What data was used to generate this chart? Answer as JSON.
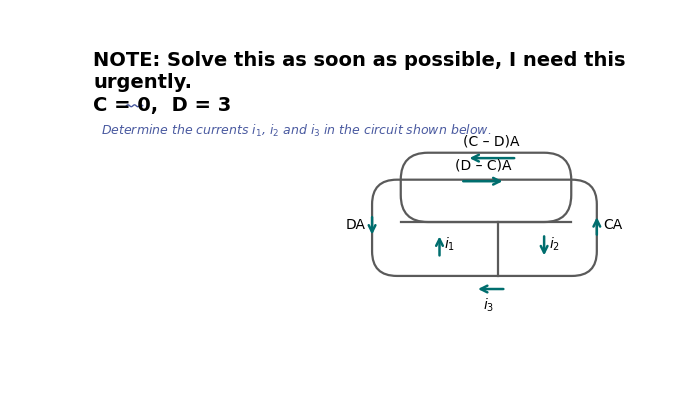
{
  "background_color": "#ffffff",
  "note_line1": "NOTE: Solve this as soon as possible, I need this",
  "note_line2": "urgently.",
  "cd_text": "C = 0,  D = 3",
  "problem_text": "Determine the currents $i_1$, $i_2$ and $i_3$ in the circuit shown below.",
  "label_CD_top": "(C – D)A",
  "label_DC_inner": "(D – C)A",
  "label_DA": "DA",
  "label_CA": "CA",
  "label_i1": "$i_1$",
  "label_i2": "$i_2$",
  "label_i3": "$i_3$",
  "teal_color": "#006e6e",
  "circuit_color": "#5a5a5a",
  "text_color_note": "#000000",
  "text_color_cd": "#000000",
  "text_color_problem": "#4a5aa0",
  "wave_color": "#4a5aa0"
}
